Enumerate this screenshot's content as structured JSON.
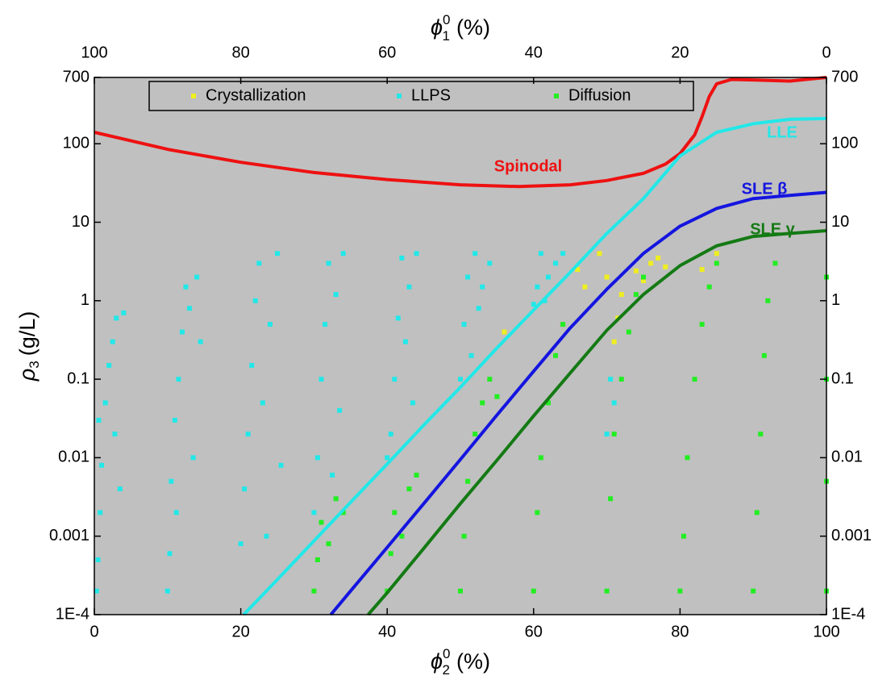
{
  "chart_data": {
    "type": "scatter",
    "xlabel": {
      "symbol": "ϕ",
      "sup": "0",
      "sub": "2",
      "unit": "(%)"
    },
    "x2label": {
      "symbol": "ϕ",
      "sup": "0",
      "sub": "1",
      "unit": "(%)"
    },
    "ylabel": {
      "symbol": "ρ",
      "sub": "3",
      "unit": "(g/L)"
    },
    "xlim": [
      0,
      100
    ],
    "xticks": [
      0,
      20,
      40,
      60,
      80,
      100
    ],
    "x2lim": [
      100,
      0
    ],
    "x2ticks": [
      100,
      80,
      60,
      40,
      20,
      0
    ],
    "yscale": "log",
    "ylim": [
      0.0001,
      700
    ],
    "yticks": [
      {
        "value": 0.0001,
        "label": "1E-4"
      },
      0.001,
      0.01,
      0.1,
      1,
      10,
      100,
      700
    ],
    "y2lim": [
      0.0001,
      700
    ],
    "y2ticks": [
      {
        "value": 0.0001,
        "label": "1E-4"
      },
      0.001,
      0.01,
      0.1,
      1,
      10,
      100,
      700
    ],
    "legend": "top",
    "series": [
      {
        "name": "Crystallization",
        "type": "scatter",
        "color": "#eeee22",
        "x": [
          56,
          66,
          67,
          69,
          70,
          71,
          71.5,
          72,
          74,
          75,
          76,
          77,
          78,
          83,
          85
        ],
        "values": [
          0.4,
          2.5,
          1.5,
          4,
          2,
          0.3,
          0.6,
          1.2,
          2.4,
          1.8,
          3,
          3.5,
          2.7,
          2.5,
          4
        ]
      },
      {
        "name": "LLPS",
        "type": "scatter",
        "color": "#22e8e8",
        "x": [
          0.3,
          0.5,
          0.8,
          1,
          1.5,
          2,
          2.5,
          3,
          3.5,
          4,
          0.6,
          2.8,
          10,
          10.3,
          10.5,
          11,
          11.5,
          12,
          12.5,
          13,
          13.5,
          14,
          14.5,
          11.2,
          20,
          20.5,
          21,
          21.5,
          22,
          22.5,
          23,
          24,
          25,
          25.5,
          23.5,
          30,
          30.5,
          31,
          31.5,
          32,
          33,
          33.5,
          34,
          32.5,
          40,
          40.5,
          41,
          41.5,
          42,
          43,
          43.5,
          44,
          42.5,
          50,
          50.5,
          51,
          52,
          52.5,
          53,
          54,
          51.5,
          60,
          60.5,
          61,
          62,
          63,
          64,
          61.5,
          70,
          70.5,
          71
        ],
        "values": [
          0.0002,
          0.0005,
          0.002,
          0.008,
          0.05,
          0.15,
          0.3,
          0.6,
          0.004,
          0.7,
          0.03,
          0.02,
          0.0002,
          0.0006,
          0.005,
          0.03,
          0.1,
          0.4,
          1.5,
          0.8,
          0.01,
          2,
          0.3,
          0.002,
          0.0008,
          0.004,
          0.02,
          0.15,
          1,
          3,
          0.05,
          0.5,
          4,
          0.008,
          0.001,
          0.002,
          0.01,
          0.1,
          0.5,
          3,
          1.2,
          0.04,
          4,
          0.006,
          0.01,
          0.02,
          0.1,
          0.6,
          3.5,
          1.5,
          0.05,
          4,
          0.3,
          0.1,
          0.5,
          2,
          4,
          0.8,
          1.5,
          3,
          0.2,
          0.9,
          1.5,
          4,
          2,
          3,
          4,
          1,
          0.02,
          0.1,
          0.05
        ]
      },
      {
        "name": "Diffusion",
        "type": "scatter",
        "color": "#22ee22",
        "x": [
          30,
          30.5,
          31,
          32,
          33,
          34,
          40,
          40.5,
          41,
          42,
          43,
          44,
          50,
          50.5,
          51,
          52,
          53,
          54,
          55,
          60,
          60.5,
          61,
          62,
          63,
          64,
          70,
          70.5,
          71,
          72,
          73,
          74,
          75,
          80,
          80.5,
          81,
          82,
          83,
          84,
          85,
          90,
          90.5,
          91,
          91.5,
          92,
          93,
          100,
          100,
          100,
          100
        ],
        "values": [
          0.0002,
          0.0005,
          0.0015,
          0.0008,
          0.003,
          0.002,
          0.0002,
          0.0006,
          0.002,
          0.001,
          0.004,
          0.006,
          0.0002,
          0.001,
          0.005,
          0.02,
          0.05,
          0.1,
          0.06,
          0.0002,
          0.002,
          0.01,
          0.05,
          0.2,
          0.5,
          0.0002,
          0.003,
          0.02,
          0.1,
          0.4,
          1.2,
          2,
          0.0002,
          0.001,
          0.01,
          0.1,
          0.5,
          1.5,
          3,
          0.0002,
          0.002,
          0.02,
          0.2,
          1,
          3,
          0.0002,
          0.005,
          0.1,
          2
        ]
      },
      {
        "name": "Spinodal",
        "type": "line",
        "color": "#ee1111",
        "x": [
          0,
          10,
          20,
          30,
          40,
          50,
          58,
          65,
          70,
          75,
          78,
          80,
          82,
          83,
          84,
          85,
          87,
          90,
          95,
          100
        ],
        "values": [
          140,
          85,
          58,
          43,
          35,
          30,
          28.5,
          30,
          34,
          42,
          55,
          75,
          130,
          220,
          400,
          580,
          660,
          650,
          630,
          700
        ]
      },
      {
        "name": "LLE",
        "type": "line",
        "color": "#22e8e8",
        "x": [
          20.4,
          25,
          30,
          35,
          40,
          45,
          50,
          55,
          60,
          65,
          70,
          75,
          80,
          85,
          90,
          95,
          100
        ],
        "values": [
          0.0001,
          0.00028,
          0.00087,
          0.0027,
          0.0083,
          0.026,
          0.079,
          0.25,
          0.76,
          2.3,
          7.2,
          20,
          70,
          140,
          180,
          205,
          210
        ]
      },
      {
        "name": "SLE β",
        "type": "line",
        "color": "#1515e0",
        "x": [
          32.3,
          35,
          40,
          45,
          50,
          55,
          60,
          65,
          70,
          75,
          80,
          85,
          90,
          95,
          100
        ],
        "values": [
          0.0001,
          0.0002,
          0.00072,
          0.0026,
          0.0095,
          0.035,
          0.126,
          0.45,
          1.4,
          4,
          8.9,
          15,
          20,
          22,
          24
        ]
      },
      {
        "name": "SLE γ",
        "type": "line",
        "color": "#147a14",
        "x": [
          37.4,
          40,
          45,
          50,
          55,
          60,
          65,
          70,
          75,
          80,
          85,
          90,
          95,
          100
        ],
        "values": [
          0.0001,
          0.00019,
          0.0007,
          0.0026,
          0.0093,
          0.034,
          0.12,
          0.42,
          1.2,
          2.8,
          5,
          6.6,
          7.2,
          7.8
        ]
      }
    ]
  }
}
